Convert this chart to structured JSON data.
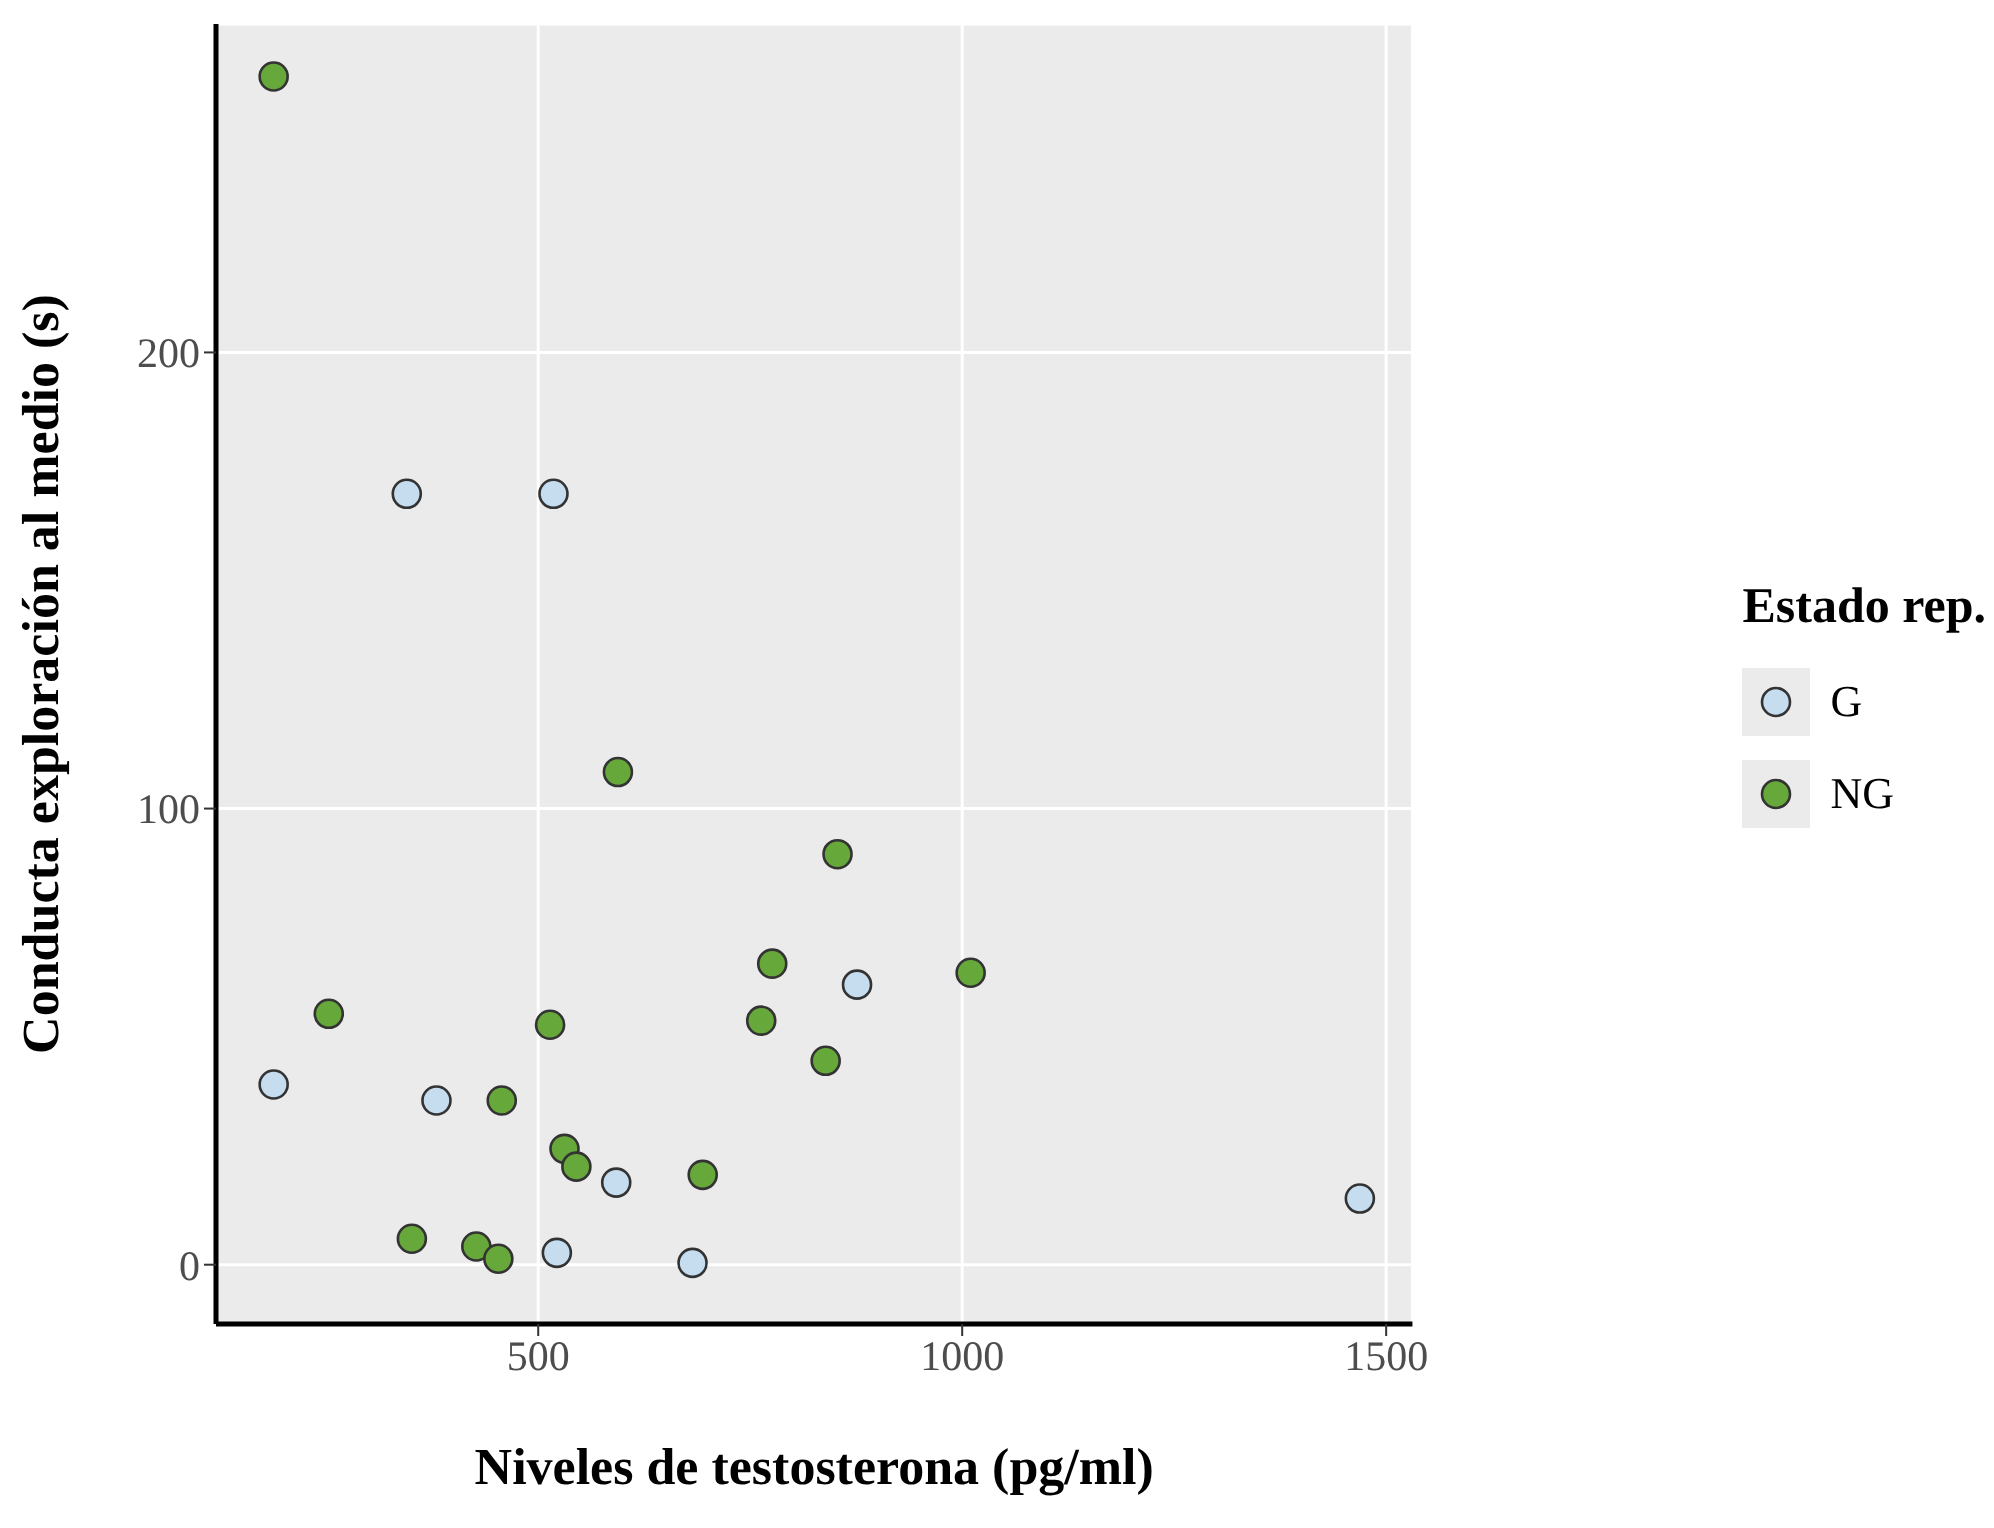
{
  "chart_data": {
    "type": "scatter",
    "xlabel": "Niveles de testosterona (pg/ml)",
    "ylabel": "Conducta exploración al medio (s)",
    "legend_title": "Estado rep.",
    "xlim": [
      120,
      1531
    ],
    "xticks": [
      500,
      1000,
      1500
    ],
    "ylim": [
      -13,
      272
    ],
    "yticks": [
      0,
      100,
      200
    ],
    "grid": true,
    "legend": "right",
    "marker": "circle",
    "series": [
      {
        "name": "G",
        "color": "#c6dcef",
        "x": [
          345,
          518,
          188,
          380,
          876,
          592,
          522,
          682,
          1469
        ],
        "values": [
          169,
          169,
          39.5,
          36,
          61.4,
          18,
          2.6,
          0.4,
          14.5
        ]
      },
      {
        "name": "NG",
        "color": "#67a83a",
        "x": [
          188,
          594,
          853,
          776,
          1010,
          253,
          514,
          763,
          839,
          457,
          531,
          545,
          694,
          351,
          427,
          453
        ],
        "values": [
          260.5,
          108,
          90,
          66,
          64,
          55,
          52.6,
          53.5,
          44.7,
          36,
          25.4,
          21.5,
          19.7,
          5.7,
          4,
          1.3
        ]
      }
    ]
  }
}
